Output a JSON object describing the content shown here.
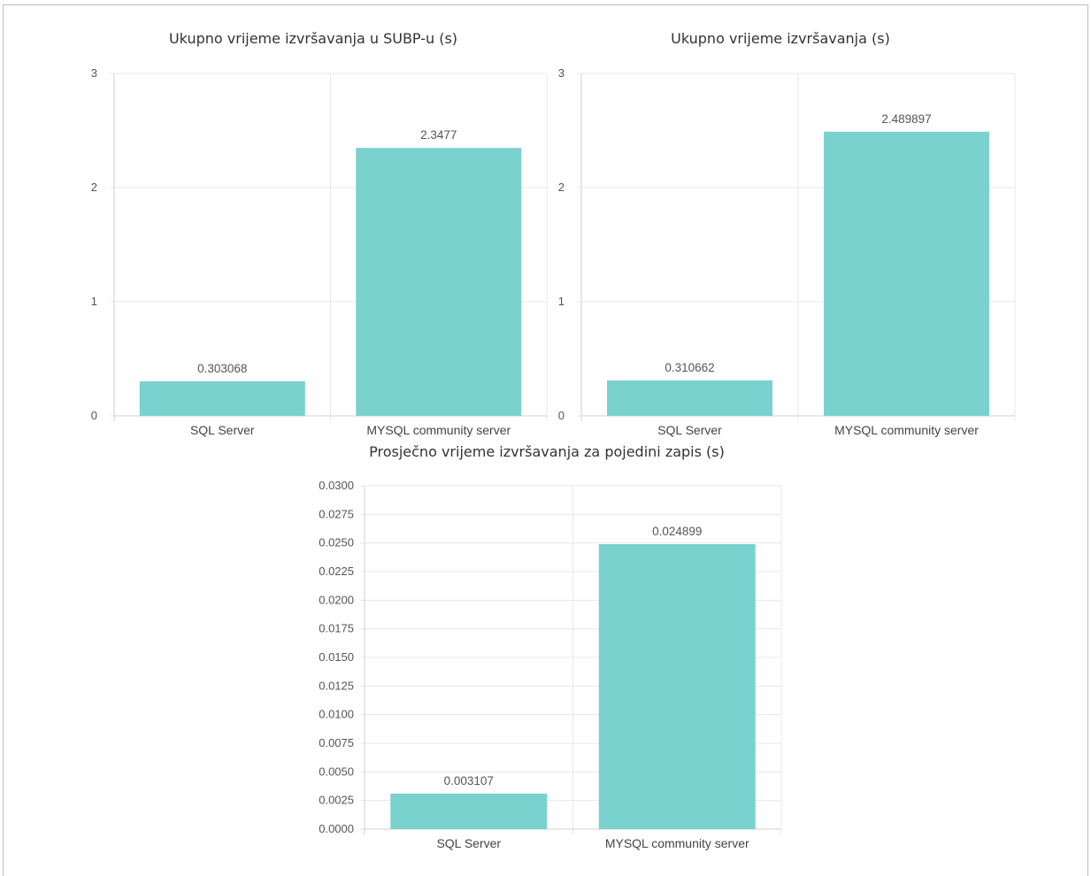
{
  "colors": {
    "bar": "#7ad2cf",
    "grid": "#e8e8e8",
    "axis": "#d0d0d0"
  },
  "chart_data": [
    {
      "type": "bar",
      "title": "Ukupno vrijeme izvršavanja u SUBP-u (s)",
      "categories": [
        "SQL Server",
        "MYSQL community server"
      ],
      "values": [
        0.303068,
        2.3477
      ],
      "value_labels": [
        "0.303068",
        "2.3477"
      ],
      "ylim": [
        0,
        3
      ],
      "y_ticks": [
        "0",
        "1",
        "2",
        "3"
      ],
      "grid": true
    },
    {
      "type": "bar",
      "title": "Ukupno vrijeme izvršavanja (s)",
      "categories": [
        "SQL Server",
        "MYSQL community server"
      ],
      "values": [
        0.310662,
        2.489897
      ],
      "value_labels": [
        "0.310662",
        "2.489897"
      ],
      "ylim": [
        0,
        3
      ],
      "y_ticks": [
        "0",
        "1",
        "2",
        "3"
      ],
      "grid": true
    },
    {
      "type": "bar",
      "title": "Prosječno vrijeme izvršavanja za pojedini zapis (s)",
      "categories": [
        "SQL Server",
        "MYSQL community server"
      ],
      "values": [
        0.003107,
        0.024899
      ],
      "value_labels": [
        "0.003107",
        "0.024899"
      ],
      "ylim": [
        0,
        0.03
      ],
      "y_ticks": [
        "0.0000",
        "0.0025",
        "0.0050",
        "0.0075",
        "0.0100",
        "0.0125",
        "0.0150",
        "0.0175",
        "0.0200",
        "0.0225",
        "0.0250",
        "0.0275",
        "0.0300"
      ],
      "grid": true
    }
  ]
}
